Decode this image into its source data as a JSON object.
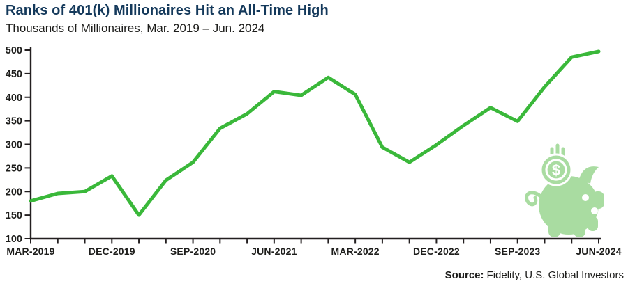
{
  "header": {
    "title": "Ranks of 401(k) Millionaires Hit an All-Time High",
    "subtitle": "Thousands of Millionaires, Mar. 2019 – Jun. 2024"
  },
  "footer": {
    "source_label": "Source:",
    "source_text": "Fidelity, U.S. Global Investors"
  },
  "colors": {
    "title_navy": "#14395b",
    "line_green": "#3ab83a",
    "piggy_green": "#a9dca1",
    "axis_black": "#231f20",
    "text_dark": "#1d1d1b"
  },
  "icons": {
    "piggy": "piggy-bank-with-dollar-coin-icon",
    "coin_symbol": "$"
  },
  "chart_data": {
    "type": "line",
    "series_name": "401(k) millionaires (thousands)",
    "x": [
      "Mar-2019",
      "Jun-2019",
      "Sep-2019",
      "Dec-2019",
      "Mar-2020",
      "Jun-2020",
      "Sep-2020",
      "Dec-2020",
      "Mar-2021",
      "Jun-2021",
      "Sep-2021",
      "Dec-2021",
      "Mar-2022",
      "Jun-2022",
      "Sep-2022",
      "Dec-2022",
      "Mar-2023",
      "Jun-2023",
      "Sep-2023",
      "Dec-2023",
      "Mar-2024",
      "Jun-2024"
    ],
    "values": [
      180,
      196,
      200,
      233,
      150,
      224,
      262,
      334,
      365,
      412,
      404,
      442,
      406,
      294,
      262,
      299,
      340,
      378,
      349,
      422,
      485,
      497
    ],
    "ylim": [
      100,
      500
    ],
    "y_ticks": [
      100,
      150,
      200,
      250,
      300,
      350,
      400,
      450,
      500
    ],
    "x_tick_label_every": 3,
    "x_tick_labels_shown": [
      "MAR-2019",
      "DEC-2019",
      "SEP-2020",
      "JUN-2021",
      "MAR-2022",
      "DEC-2022",
      "SEP-2023",
      "JUN-2024"
    ],
    "grid": false,
    "legend": "none",
    "line_width": 5
  }
}
